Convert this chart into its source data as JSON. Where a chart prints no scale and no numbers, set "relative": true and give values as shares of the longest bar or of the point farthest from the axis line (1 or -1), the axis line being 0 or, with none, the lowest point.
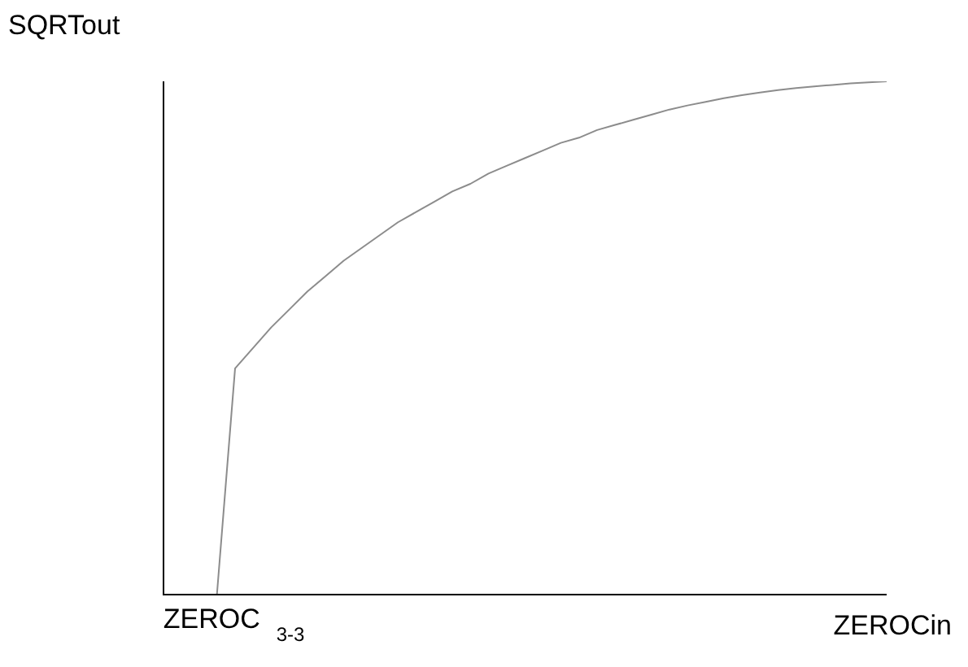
{
  "chart_data": {
    "type": "line",
    "relative": true,
    "xlabel": "ZEROCin",
    "ylabel": "SQRTout",
    "color": "#8c8c8c",
    "annotations": [
      "ZEROC$_{3-3}$"
    ],
    "categories": [
      null,
      null,
      null,
      null,
      null,
      null,
      null,
      null,
      null,
      null,
      null,
      null,
      null,
      null,
      null,
      null,
      null,
      null,
      null,
      null,
      null,
      null,
      null,
      null,
      null,
      null,
      null,
      null,
      null,
      null,
      null,
      null,
      null,
      null,
      null,
      null,
      null,
      null,
      null,
      null,
      null
    ],
    "values": [
      null,
      null,
      null,
      0,
      0.44,
      0.48,
      0.52,
      0.555,
      0.59,
      0.62,
      0.65,
      0.675,
      0.7,
      0.725,
      0.745,
      0.765,
      0.785,
      0.8,
      0.82,
      0.835,
      0.85,
      0.865,
      0.88,
      0.89,
      0.905,
      0.915,
      0.925,
      0.935,
      0.945,
      0.953,
      0.96,
      0.967,
      0.973,
      0.978,
      0.983,
      0.987,
      0.99,
      0.993,
      0.996,
      0.998,
      1
    ]
  }
}
